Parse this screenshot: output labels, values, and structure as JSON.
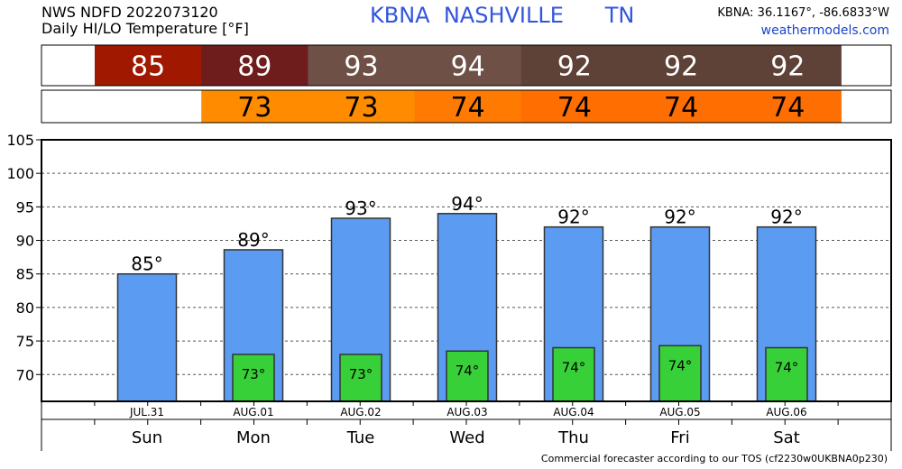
{
  "header": {
    "product": "NWS NDFD 2022073120",
    "subtitle": "Daily HI/LO Temperature [°F]",
    "station_code": "KBNA",
    "station_name": "NASHVILLE",
    "state": "TN",
    "coords": "KBNA: 36.1167°, -86.6833°W",
    "site": "weathermodels.com"
  },
  "strips": {
    "hi": {
      "values": [
        85,
        89,
        93,
        94,
        92,
        92,
        92
      ],
      "colors": [
        "#a01800",
        "#6e1c1c",
        "#6e5047",
        "#6e5047",
        "#5e4238",
        "#5e4238",
        "#5e4238"
      ]
    },
    "lo": {
      "values": [
        null,
        73,
        73,
        74,
        74,
        74,
        74
      ],
      "colors": [
        null,
        "#ff8c00",
        "#ff8c00",
        "#ff7a00",
        "#ff6e00",
        "#ff6e00",
        "#ff6e00"
      ]
    }
  },
  "chart_data": {
    "type": "bar",
    "categories": [
      "JUL.31",
      "AUG.01",
      "AUG.02",
      "AUG.03",
      "AUG.04",
      "AUG.05",
      "AUG.06"
    ],
    "days": [
      "Sun",
      "Mon",
      "Tue",
      "Wed",
      "Thu",
      "Fri",
      "Sat"
    ],
    "series": [
      {
        "values": [
          85,
          88.6,
          93.3,
          94,
          92,
          92,
          92
        ],
        "labels": [
          "85°",
          "89°",
          "93°",
          "94°",
          "92°",
          "92°",
          "92°"
        ],
        "color": "#5b9cf2"
      },
      {
        "values": [
          null,
          73,
          73,
          73.5,
          74,
          74.3,
          74
        ],
        "labels": [
          "",
          "73°",
          "73°",
          "74°",
          "74°",
          "74°",
          "74°"
        ],
        "color": "#38d038"
      }
    ],
    "ylim": [
      66,
      105
    ],
    "yticks": [
      70,
      75,
      80,
      85,
      90,
      95,
      100,
      105
    ],
    "grid": true
  },
  "footer": "Commercial forecaster according to our TOS (cf2230w0UKBNA0p230)"
}
